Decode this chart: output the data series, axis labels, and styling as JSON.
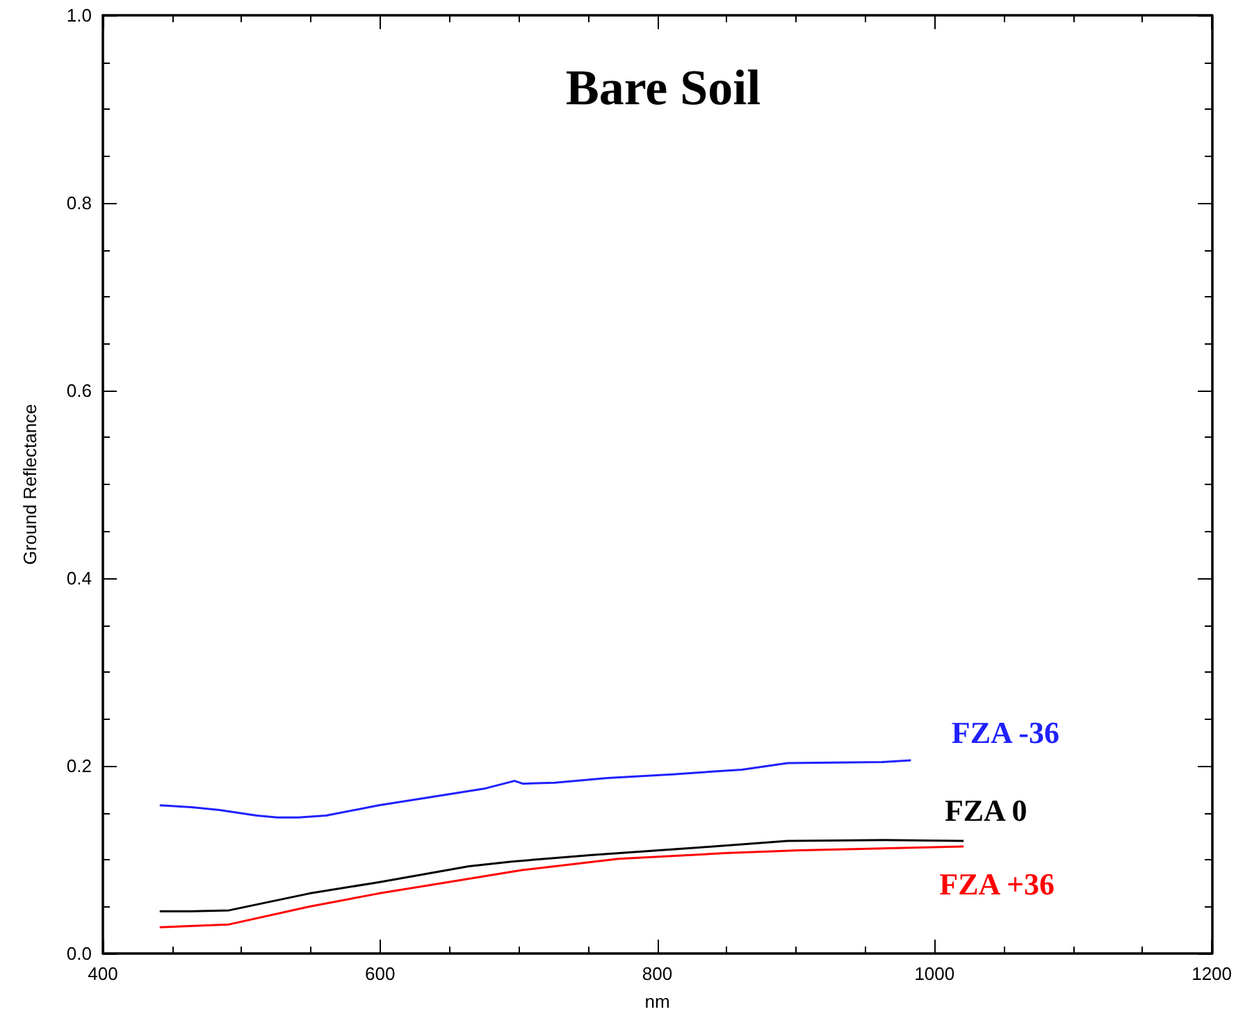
{
  "chart_data": {
    "type": "line",
    "title": "Bare Soil",
    "xlabel": "nm",
    "ylabel": "Ground Reflectance",
    "xlim": [
      400,
      1200
    ],
    "xticks": [
      400,
      {
        "value": 450,
        "label": null
      },
      {
        "value": 500,
        "label": null
      },
      {
        "value": 550,
        "label": null
      },
      600,
      {
        "value": 650,
        "label": null
      },
      {
        "value": 700,
        "label": null
      },
      {
        "value": 750,
        "label": null
      },
      800,
      {
        "value": 850,
        "label": null
      },
      {
        "value": 900,
        "label": null
      },
      {
        "value": 950,
        "label": null
      },
      1000,
      {
        "value": 1050,
        "label": null
      },
      {
        "value": 1100,
        "label": null
      },
      {
        "value": 1150,
        "label": null
      },
      1200
    ],
    "ylim": [
      0,
      1
    ],
    "yticks": [
      {
        "value": 0,
        "label": "0.0"
      },
      {
        "value": 0.05,
        "label": null
      },
      {
        "value": 0.1,
        "label": null
      },
      {
        "value": 0.15,
        "label": null
      },
      0.2,
      {
        "value": 0.25,
        "label": null
      },
      {
        "value": 0.3,
        "label": null
      },
      {
        "value": 0.35,
        "label": null
      },
      0.4,
      {
        "value": 0.45,
        "label": null
      },
      {
        "value": 0.5,
        "label": null
      },
      {
        "value": 0.55,
        "label": null
      },
      0.6,
      {
        "value": 0.65,
        "label": null
      },
      {
        "value": 0.7,
        "label": null
      },
      {
        "value": 0.75,
        "label": null
      },
      0.8,
      {
        "value": 0.85,
        "label": null
      },
      {
        "value": 0.9,
        "label": null
      },
      {
        "value": 0.95,
        "label": null
      },
      {
        "value": 1,
        "label": "1.0"
      }
    ],
    "grid": false,
    "legend": false,
    "marker": "none",
    "line_style": "solid",
    "series": [
      {
        "name": "FZA -36",
        "color": "#2020ff",
        "x": [
          441,
          464,
          484,
          511,
          526,
          541,
          561,
          599,
          638,
          676,
          697,
          703,
          726,
          764,
          811,
          861,
          894,
          962,
          983
        ],
        "values": [
          0.158,
          0.156,
          0.153,
          0.147,
          0.145,
          0.145,
          0.147,
          0.158,
          0.167,
          0.176,
          0.184,
          0.181,
          0.182,
          0.187,
          0.191,
          0.196,
          0.203,
          0.204,
          0.206
        ]
      },
      {
        "name": "FZA 0",
        "color": "#000000",
        "x": [
          441,
          464,
          491,
          549,
          599,
          664,
          695,
          753,
          830,
          894,
          964,
          1021
        ],
        "values": [
          0.045,
          0.045,
          0.046,
          0.064,
          0.076,
          0.093,
          0.098,
          0.105,
          0.113,
          0.12,
          0.121,
          0.12
        ]
      },
      {
        "name": "FZA +36",
        "color": "#ff0000",
        "x": [
          441,
          491,
          549,
          599,
          703,
          772,
          849,
          903,
          1021
        ],
        "values": [
          0.028,
          0.031,
          0.05,
          0.064,
          0.089,
          0.101,
          0.107,
          0.11,
          0.114
        ]
      }
    ]
  }
}
